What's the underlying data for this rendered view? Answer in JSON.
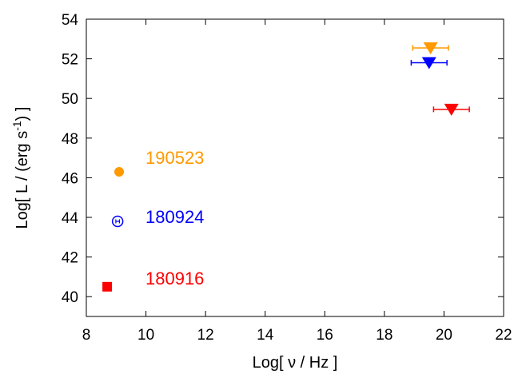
{
  "chart_data": {
    "type": "scatter",
    "xlabel": "Log[ ν / Hz ]",
    "ylabel_parts": [
      "Log[ L / (erg s",
      "-1",
      ") ]"
    ],
    "xlim": [
      8,
      22
    ],
    "ylim": [
      39,
      54
    ],
    "xticks": [
      8,
      10,
      12,
      14,
      16,
      18,
      20,
      22
    ],
    "yticks": [
      40,
      42,
      44,
      46,
      48,
      50,
      52,
      54
    ],
    "grid": false,
    "series": [
      {
        "name": "190523",
        "color": "#FF9900",
        "detection": {
          "x": 9.1,
          "y": 46.3,
          "marker": "filled-circle"
        },
        "upper_limit": {
          "x": 19.55,
          "y": 52.55,
          "xerr": 0.6,
          "marker": "down-triangle"
        }
      },
      {
        "name": "180924",
        "color": "#0000FF",
        "detection": {
          "x": 9.05,
          "y": 43.8,
          "marker": "open-circle-dot",
          "xerr": 0.06
        },
        "upper_limit": {
          "x": 19.5,
          "y": 51.8,
          "xerr": 0.6,
          "marker": "down-triangle"
        }
      },
      {
        "name": "180916",
        "color": "#FF0000",
        "detection": {
          "x": 8.7,
          "y": 40.5,
          "marker": "filled-square"
        },
        "upper_limit": {
          "x": 20.25,
          "y": 49.45,
          "xerr": 0.6,
          "marker": "down-triangle"
        }
      }
    ]
  }
}
